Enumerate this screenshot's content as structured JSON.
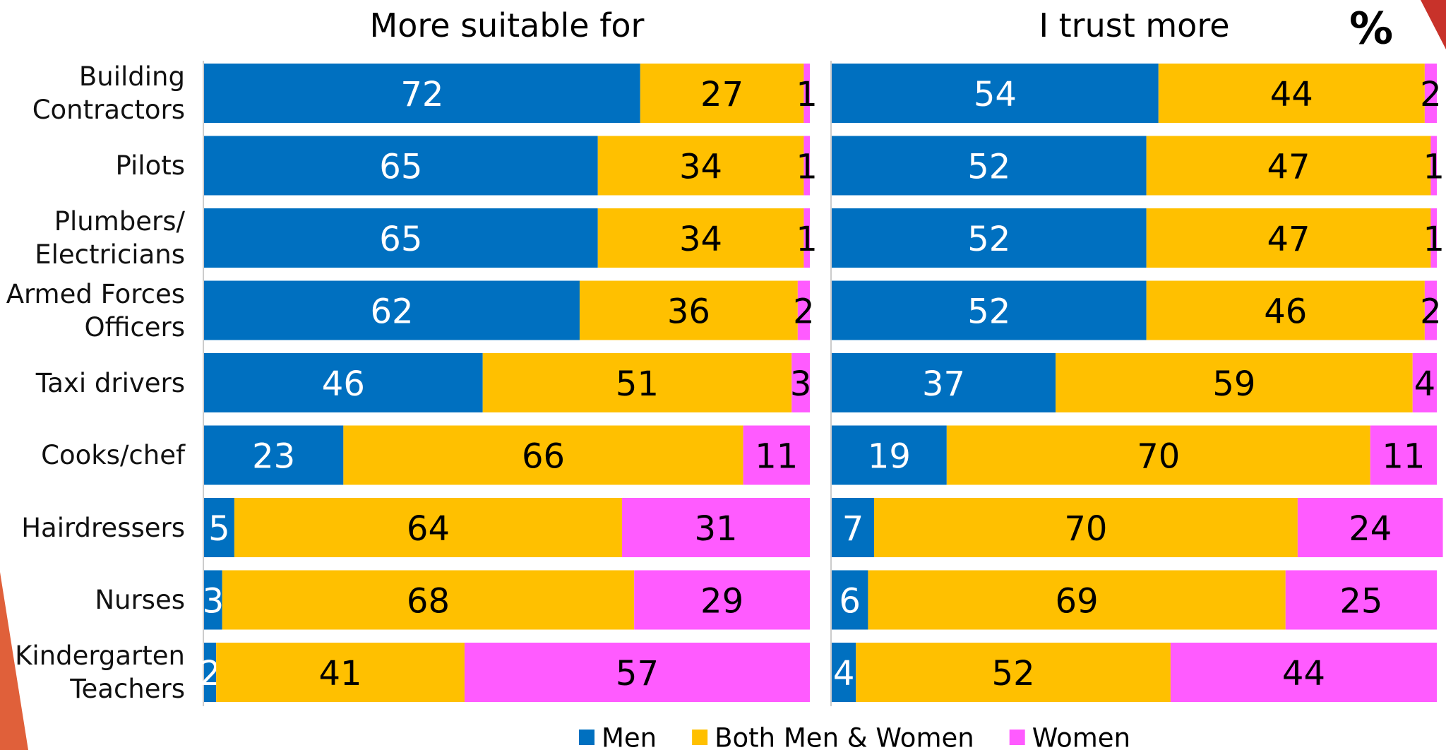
{
  "chart_data": [
    {
      "type": "bar",
      "orientation": "horizontal",
      "stacked": true,
      "title": "More suitable for",
      "categories": [
        "Building Contractors",
        "Pilots",
        "Plumbers/ Electricians",
        "Armed Forces Officers",
        "Taxi drivers",
        "Cooks/chef",
        "Hairdressers",
        "Nurses",
        "Kindergarten Teachers"
      ],
      "xlim": [
        0,
        100
      ],
      "series": [
        {
          "name": "Men",
          "color": "#0070c0",
          "values": [
            72,
            65,
            65,
            62,
            46,
            23,
            5,
            3,
            2
          ]
        },
        {
          "name": "Both Men & Women",
          "color": "#ffc000",
          "values": [
            27,
            34,
            34,
            36,
            51,
            66,
            64,
            68,
            41
          ]
        },
        {
          "name": "Women",
          "color": "#ff5bff",
          "values": [
            1,
            1,
            1,
            2,
            3,
            11,
            31,
            29,
            57
          ]
        }
      ]
    },
    {
      "type": "bar",
      "orientation": "horizontal",
      "stacked": true,
      "title": "I trust more",
      "annotation": "%",
      "xlim": [
        0,
        100
      ],
      "series": [
        {
          "color": "#0070c0",
          "values": [
            54,
            52,
            52,
            52,
            37,
            19,
            7,
            6,
            4
          ]
        },
        {
          "color": "#ffc000",
          "values": [
            44,
            47,
            47,
            46,
            59,
            70,
            70,
            69,
            52
          ]
        },
        {
          "color": "#ff5bff",
          "values": [
            2,
            1,
            1,
            2,
            4,
            11,
            24,
            25,
            44
          ]
        }
      ]
    }
  ]
}
